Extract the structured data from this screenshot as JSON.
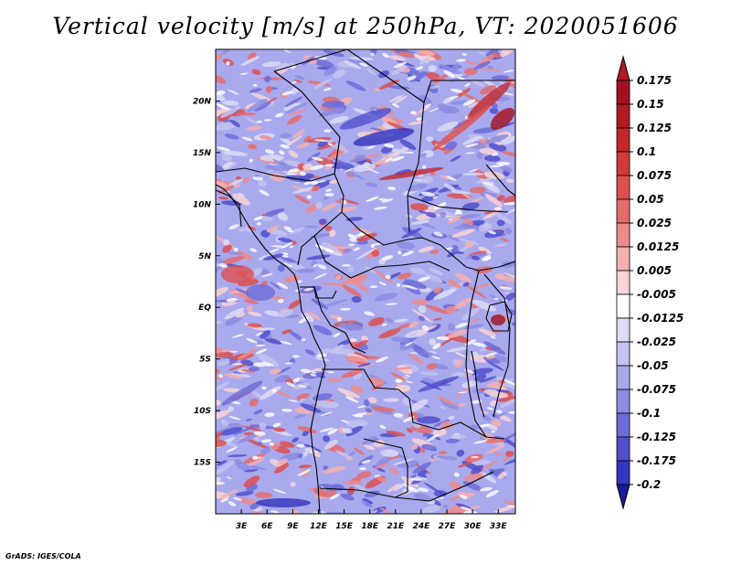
{
  "chart_data": {
    "type": "heatmap",
    "title": "Vertical velocity [m/s] at 250hPa, VT: 2020051606",
    "xlabel": "",
    "ylabel": "",
    "x_tick_labels": [
      "3E",
      "6E",
      "9E",
      "12E",
      "15E",
      "18E",
      "21E",
      "24E",
      "27E",
      "30E",
      "33E"
    ],
    "x_tick_values": [
      3,
      6,
      9,
      12,
      15,
      18,
      21,
      24,
      27,
      30,
      33
    ],
    "y_tick_labels": [
      "20N",
      "15N",
      "10N",
      "5N",
      "EQ",
      "5S",
      "10S",
      "15S"
    ],
    "y_tick_values": [
      20,
      15,
      10,
      5,
      0,
      -5,
      -10,
      -15
    ],
    "xlim": [
      0,
      35
    ],
    "ylim": [
      -20,
      25
    ],
    "colorbar_labels": [
      "0.175",
      "0.15",
      "0.125",
      "0.1",
      "0.075",
      "0.05",
      "0.025",
      "0.0125",
      "0.005",
      "-0.005",
      "-0.0125",
      "-0.025",
      "-0.05",
      "-0.075",
      "-0.1",
      "-0.125",
      "-0.175",
      "-0.2"
    ],
    "colorbar_colors": [
      "#a01020",
      "#b01a24",
      "#c0282c",
      "#d03a3a",
      "#dc5050",
      "#e46c6c",
      "#ec8c8c",
      "#f4b0b0",
      "#f9d4d4",
      "#ffffff",
      "#dcdcf6",
      "#c4c4f0",
      "#a8a8ea",
      "#8c8ce2",
      "#6c6cd8",
      "#5050cc",
      "#3434bc",
      "#2020a0"
    ],
    "colorbar_end_colors": {
      "top": "#b01a24",
      "bottom": "#1a1a9a"
    }
  },
  "credit": "GrADS: IGES/COLA"
}
